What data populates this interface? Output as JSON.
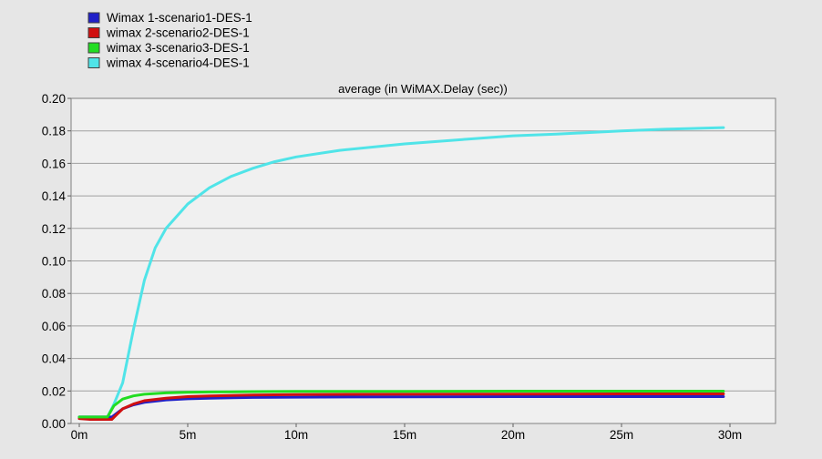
{
  "chart_data": {
    "type": "line",
    "title": "average (in WiMAX.Delay (sec))",
    "xlabel": "",
    "ylabel": "",
    "x_ticks": [
      "0m",
      "5m",
      "10m",
      "15m",
      "20m",
      "25m",
      "30m"
    ],
    "y_ticks": [
      "0.00",
      "0.02",
      "0.04",
      "0.06",
      "0.08",
      "0.10",
      "0.12",
      "0.14",
      "0.16",
      "0.18",
      "0.20"
    ],
    "xlim": [
      0,
      31
    ],
    "ylim": [
      0,
      0.2
    ],
    "grid": "horizontal",
    "legend_position": "top-left",
    "series": [
      {
        "name": "Wimax 1-scenario1-DES-1",
        "color": "#2020c8",
        "x": [
          0,
          0.5,
          1.5,
          2,
          2.5,
          3,
          4,
          5,
          6,
          8,
          10,
          15,
          20,
          25,
          29.7
        ],
        "y": [
          0.004,
          0.004,
          0.004,
          0.009,
          0.0115,
          0.013,
          0.0145,
          0.0152,
          0.0156,
          0.016,
          0.0162,
          0.0164,
          0.0165,
          0.0165,
          0.0165
        ]
      },
      {
        "name": "wimax 2-scenario2-DES-1",
        "color": "#d01010",
        "x": [
          0,
          0.5,
          1.5,
          2,
          2.5,
          3,
          4,
          5,
          6,
          8,
          10,
          15,
          20,
          25,
          29.7
        ],
        "y": [
          0.003,
          0.0025,
          0.0025,
          0.009,
          0.012,
          0.014,
          0.0155,
          0.0165,
          0.017,
          0.0175,
          0.0178,
          0.018,
          0.0181,
          0.0182,
          0.0182
        ]
      },
      {
        "name": "wimax 3-scenario3-DES-1",
        "color": "#22dd22",
        "x": [
          0,
          0.5,
          1.3,
          1.6,
          2,
          2.5,
          3,
          4,
          5,
          6,
          8,
          10,
          15,
          20,
          25,
          29.7
        ],
        "y": [
          0.004,
          0.004,
          0.004,
          0.011,
          0.015,
          0.017,
          0.018,
          0.0188,
          0.0192,
          0.0194,
          0.0196,
          0.0197,
          0.0198,
          0.0199,
          0.0199,
          0.0199
        ]
      },
      {
        "name": "wimax 4-scenario4-DES-1",
        "color": "#50e4e8",
        "x": [
          0,
          0.5,
          1.3,
          1.6,
          2,
          2.5,
          3,
          3.5,
          4,
          5,
          6,
          7,
          8,
          9,
          10,
          12,
          15,
          18,
          20,
          22,
          25,
          27,
          29.7
        ],
        "y": [
          0.004,
          0.004,
          0.004,
          0.012,
          0.025,
          0.058,
          0.088,
          0.108,
          0.12,
          0.135,
          0.145,
          0.152,
          0.157,
          0.161,
          0.164,
          0.168,
          0.172,
          0.175,
          0.177,
          0.178,
          0.18,
          0.181,
          0.182
        ]
      }
    ]
  }
}
